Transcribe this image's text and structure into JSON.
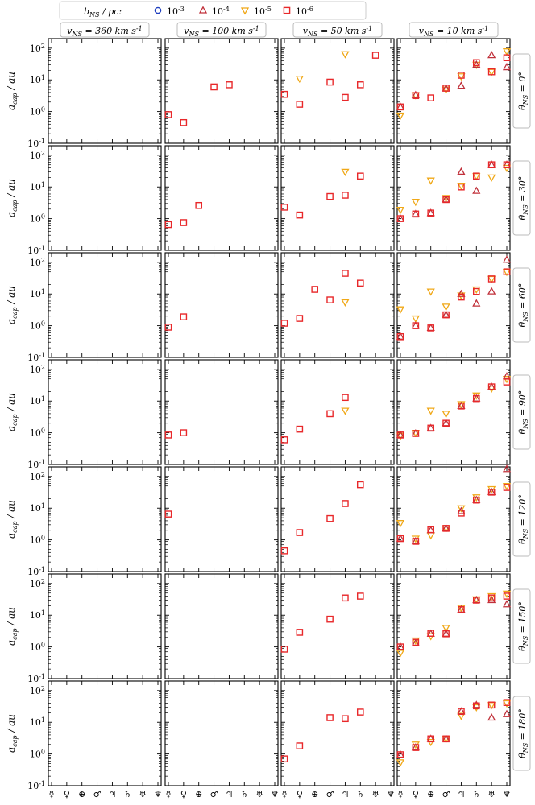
{
  "colors": {
    "b1e-3": "#1f3fbf",
    "b1e-4": "#c0303a",
    "b1e-5": "#f0a818",
    "b1e-6": "#e8282a"
  },
  "chart_data": {
    "type": "scatter",
    "title": "",
    "legend": {
      "title": "b_NS / pc:",
      "entries": [
        {
          "key": "b1e-3",
          "label": "10^-3",
          "marker": "circle"
        },
        {
          "key": "b1e-4",
          "label": "10^-4",
          "marker": "triangle-up"
        },
        {
          "key": "b1e-5",
          "label": "10^-5",
          "marker": "triangle-down"
        },
        {
          "key": "b1e-6",
          "label": "10^-6",
          "marker": "square"
        }
      ]
    },
    "ylabel": "a_cap / au",
    "yscale": "log",
    "ylim": [
      0.1,
      200
    ],
    "ytick_labels": [
      "10^-1",
      "10^0",
      "10^1",
      "10^2"
    ],
    "x_categories": [
      "Mercury",
      "Venus",
      "Earth",
      "Mars",
      "Jupiter",
      "Saturn",
      "Uranus",
      "Neptune"
    ],
    "x_tick_glyphs": [
      "☿",
      "♀",
      "⊕",
      "♂",
      "♃",
      "♄",
      "♅",
      "♆"
    ],
    "columns": [
      {
        "label": "v_NS = 360 km s^-1"
      },
      {
        "label": "v_NS = 100 km s^-1"
      },
      {
        "label": "v_NS = 50 km s^-1"
      },
      {
        "label": "v_NS = 10 km s^-1"
      }
    ],
    "rows": [
      {
        "label": "θ_NS = 0°"
      },
      {
        "label": "θ_NS = 30°"
      },
      {
        "label": "θ_NS = 60°"
      },
      {
        "label": "θ_NS = 90°"
      },
      {
        "label": "θ_NS = 120°"
      },
      {
        "label": "θ_NS = 150°"
      },
      {
        "label": "θ_NS = 180°"
      }
    ],
    "panels": [
      [
        {},
        {
          "b1e-6": [
            0.8,
            0.45,
            null,
            6,
            7,
            null,
            null,
            null
          ]
        },
        {
          "b1e-5": [
            null,
            11,
            null,
            null,
            65,
            null,
            null,
            null
          ],
          "b1e-6": [
            3.5,
            1.7,
            null,
            8.5,
            2.8,
            7,
            60,
            null
          ]
        },
        {
          "b1e-4": [
            1.4,
            3.3,
            null,
            5.3,
            6.5,
            30,
            60,
            25
          ],
          "b1e-5": [
            0.75,
            3.3,
            null,
            5,
            13,
            30,
            18,
            80
          ],
          "b1e-6": [
            1.4,
            3.2,
            2.7,
            5.5,
            14,
            35,
            18,
            50
          ]
        }
      ],
      [
        {},
        {
          "b1e-6": [
            0.65,
            0.75,
            2.6,
            null,
            null,
            null,
            null,
            null
          ]
        },
        {
          "b1e-5": [
            null,
            null,
            null,
            null,
            30,
            null,
            null,
            null
          ],
          "b1e-6": [
            2.3,
            1.3,
            null,
            5,
            5.5,
            22,
            null,
            null
          ]
        },
        {
          "b1e-4": [
            1,
            1.4,
            1.5,
            4,
            30,
            7.5,
            50,
            50
          ],
          "b1e-5": [
            1.9,
            3.4,
            16,
            4.5,
            11,
            22,
            20,
            40
          ],
          "b1e-6": [
            1,
            1.4,
            1.5,
            4,
            10,
            22,
            50,
            50
          ]
        }
      ],
      [
        {},
        {
          "b1e-6": [
            0.9,
            1.9,
            null,
            null,
            null,
            null,
            null,
            null
          ]
        },
        {
          "b1e-5": [
            null,
            null,
            null,
            null,
            5.5,
            null,
            null,
            null
          ],
          "b1e-6": [
            1.2,
            1.7,
            14,
            6.5,
            45,
            22,
            null,
            null
          ]
        },
        {
          "b1e-4": [
            0.45,
            1,
            0.85,
            2.2,
            10,
            5,
            12,
            120
          ],
          "b1e-5": [
            3.3,
            1.7,
            12,
            4,
            9,
            14,
            30,
            50
          ],
          "b1e-6": [
            0.45,
            1,
            0.85,
            2.2,
            8,
            12,
            30,
            50
          ]
        }
      ],
      [
        {},
        {
          "b1e-6": [
            0.85,
            1,
            null,
            null,
            null,
            null,
            null,
            null
          ]
        },
        {
          "b1e-5": [
            null,
            null,
            null,
            null,
            5,
            null,
            null,
            null
          ],
          "b1e-6": [
            0.6,
            1.3,
            null,
            4,
            13,
            null,
            null,
            null
          ]
        },
        {
          "b1e-4": [
            0.85,
            0.95,
            1.4,
            2,
            7,
            12,
            28,
            60
          ],
          "b1e-5": [
            0.8,
            1,
            5,
            4,
            8,
            15,
            25,
            50
          ],
          "b1e-6": [
            0.85,
            0.95,
            1.4,
            2,
            7,
            12,
            28,
            40
          ]
        }
      ],
      [
        {},
        {
          "b1e-6": [
            6.5,
            null,
            null,
            null,
            null,
            null,
            null,
            null
          ]
        },
        {
          "b1e-6": [
            0.45,
            1.7,
            null,
            4.7,
            14,
            55,
            null,
            null
          ]
        },
        {
          "b1e-4": [
            1.1,
            0.9,
            2,
            2.3,
            8,
            18,
            32,
            170
          ],
          "b1e-5": [
            3.4,
            1.1,
            1.4,
            2.3,
            10,
            22,
            40,
            50
          ],
          "b1e-6": [
            1.1,
            0.9,
            2.1,
            2.3,
            7,
            18,
            32,
            45
          ]
        }
      ],
      [
        {},
        {},
        {
          "b1e-6": [
            0.85,
            2.9,
            null,
            7.5,
            35,
            40,
            null,
            null
          ]
        },
        {
          "b1e-4": [
            1,
            1.3,
            2.6,
            2.6,
            15,
            30,
            30,
            22
          ],
          "b1e-5": [
            0.65,
            1.6,
            2.2,
            4,
            17,
            32,
            40,
            48
          ],
          "b1e-6": [
            1,
            1.4,
            2.7,
            2.6,
            15,
            30,
            35,
            40
          ]
        }
      ],
      [
        {},
        {},
        {
          "b1e-6": [
            0.7,
            1.8,
            null,
            14,
            13,
            21,
            null,
            null
          ]
        },
        {
          "b1e-4": [
            0.95,
            1.6,
            3,
            3,
            22,
            35,
            14,
            18
          ],
          "b1e-5": [
            0.55,
            2,
            2.4,
            3,
            16,
            30,
            35,
            40
          ],
          "b1e-6": [
            0.95,
            1.6,
            3,
            3,
            22,
            33,
            35,
            42
          ]
        }
      ]
    ]
  }
}
